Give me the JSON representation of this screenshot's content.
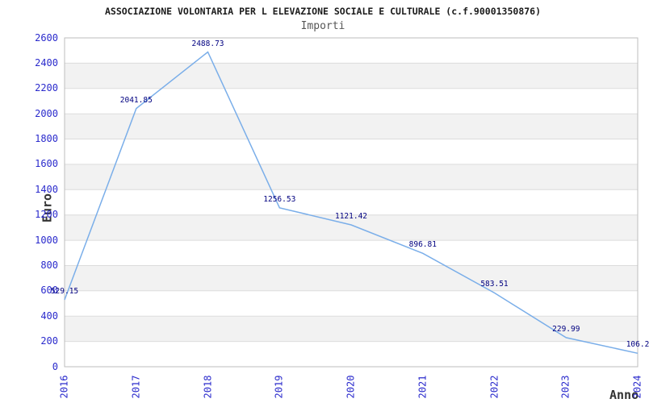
{
  "header": {
    "title": "ASSOCIAZIONE VOLONTARIA PER L ELEVAZIONE SOCIALE E CULTURALE (c.f.90001350876)",
    "subtitle": "Importi"
  },
  "chart_data": {
    "type": "line",
    "title": "ASSOCIAZIONE VOLONTARIA PER L ELEVAZIONE SOCIALE E CULTURALE (c.f.90001350876)",
    "subtitle": "Importi",
    "xlabel": "Anno",
    "ylabel": "Euro",
    "categories": [
      "2016",
      "2017",
      "2018",
      "2019",
      "2020",
      "2021",
      "2022",
      "2023",
      "2024"
    ],
    "values": [
      529.15,
      2041.85,
      2488.73,
      1256.53,
      1121.42,
      896.81,
      583.51,
      229.99,
      106.2
    ],
    "value_labels": [
      "529.15",
      "2041.85",
      "2488.73",
      "1256.53",
      "1121.42",
      "896.81",
      "583.51",
      "229.99",
      "106.2"
    ],
    "ylim": [
      0,
      2600
    ],
    "yticks": [
      0,
      200,
      400,
      600,
      800,
      1000,
      1200,
      1400,
      1600,
      1800,
      2000,
      2200,
      2400,
      2600
    ],
    "grid": "horizontal",
    "bands": "alternating",
    "legend": "none",
    "colors": {
      "line": "#7aaee9",
      "tick_label": "#2a2acc",
      "value_label": "#000080",
      "band": "#f2f2f2",
      "grid": "#dcdcdc",
      "frame": "#bdbdbd",
      "title": "#1b1b1b",
      "subtitle": "#565656",
      "axis_title": "#333333"
    }
  }
}
